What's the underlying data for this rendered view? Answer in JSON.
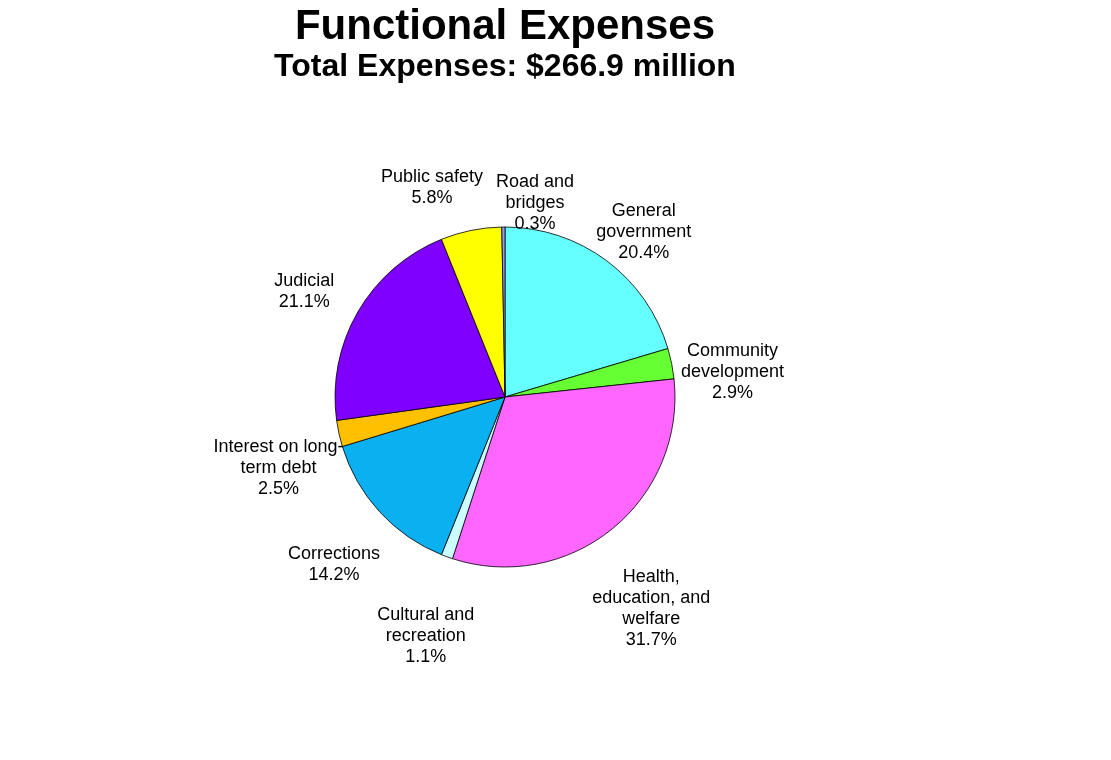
{
  "chart_data": {
    "type": "pie",
    "title": "Functional Expenses",
    "subtitle": "Total Expenses: $266.9 million",
    "categories": [
      "General government",
      "Community development",
      "Health, education, and welfare",
      "Cultural and recreation",
      "Corrections",
      "Interest on long-term debt",
      "Judicial",
      "Public safety",
      "Road and bridges"
    ],
    "values": [
      20.4,
      2.9,
      31.7,
      1.1,
      14.2,
      2.5,
      21.1,
      5.8,
      0.3
    ],
    "colors": [
      "#66ffff",
      "#66ff33",
      "#ff66ff",
      "#ccffff",
      "#0ab0f0",
      "#ffc000",
      "#7f00ff",
      "#ffff00",
      "#9999ff"
    ],
    "value_labels": [
      "20.4%",
      "2.9%",
      "31.7%",
      "1.1%",
      "14.2%",
      "2.5%",
      "21.1%",
      "5.8%",
      "0.3%"
    ],
    "legend": false
  }
}
